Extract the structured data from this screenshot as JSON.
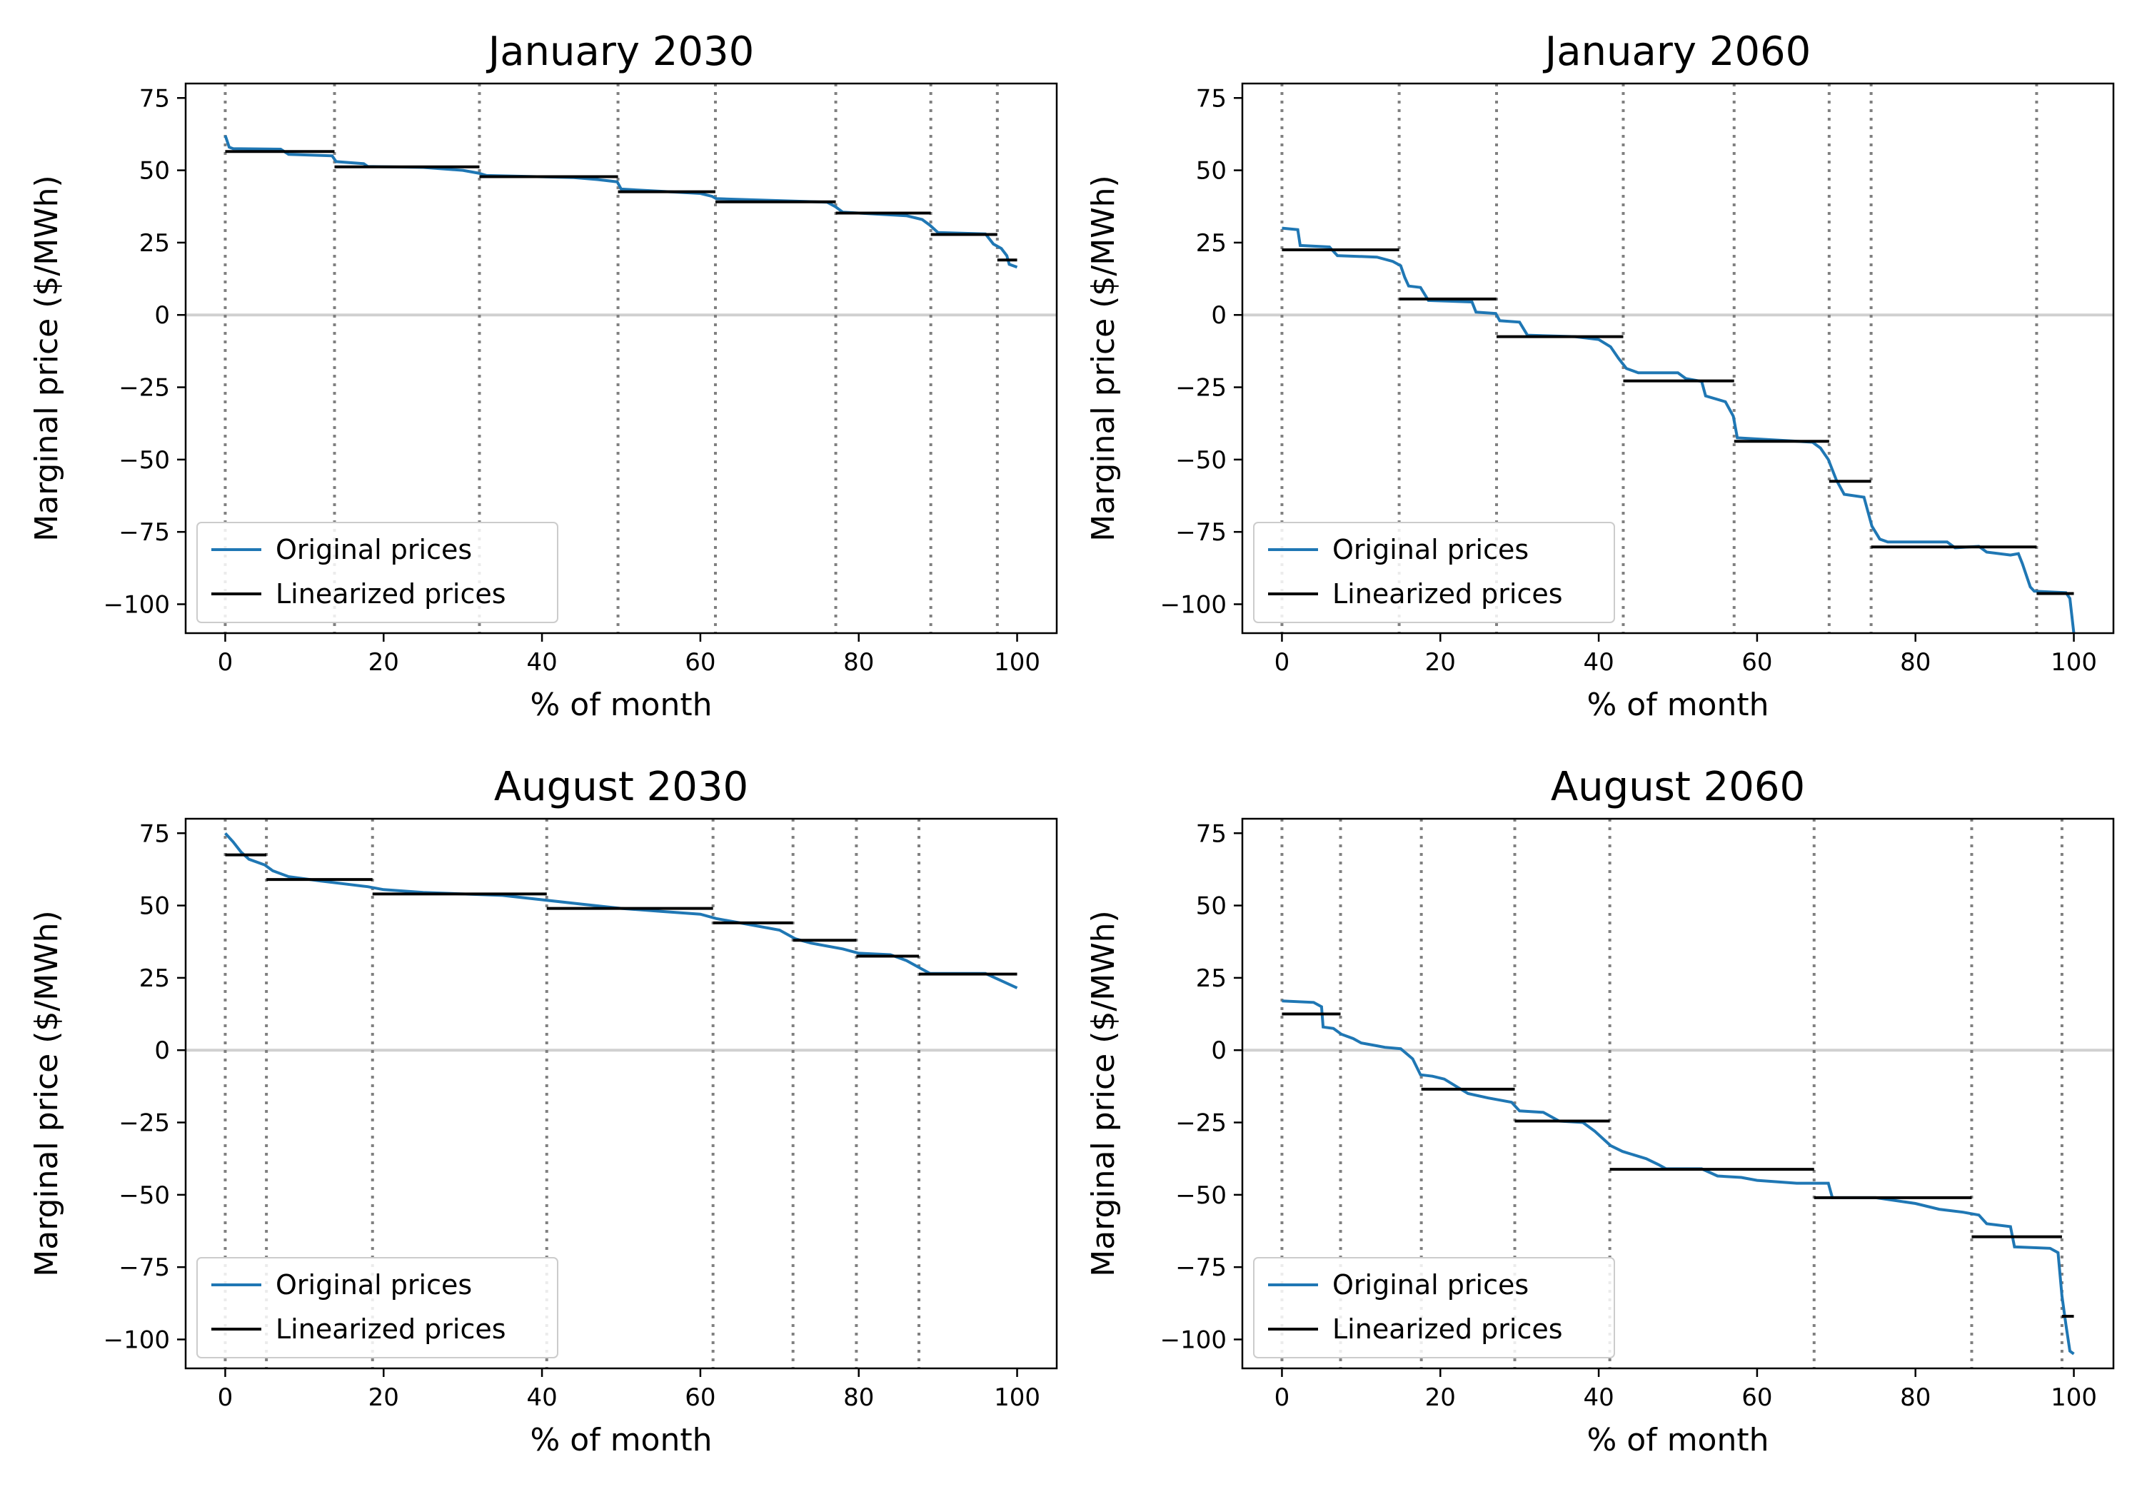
{
  "figure": {
    "panels": [
      {
        "title": "January 2030",
        "xlabel": "% of month",
        "ylabel": "Marginal price ($/MWh)"
      },
      {
        "title": "January 2060",
        "xlabel": "% of month",
        "ylabel": "Marginal price ($/MWh)"
      },
      {
        "title": "August 2030",
        "xlabel": "% of month",
        "ylabel": "Marginal price ($/MWh)"
      },
      {
        "title": "August 2060",
        "xlabel": "% of month",
        "ylabel": "Marginal price ($/MWh)"
      }
    ]
  },
  "chart_data": [
    {
      "type": "line",
      "title": "January 2030",
      "xlabel": "% of month",
      "ylabel": "Marginal price ($/MWh)",
      "xlim": [
        -5,
        105
      ],
      "ylim": [
        -110,
        80
      ],
      "xticks": [
        0,
        20,
        40,
        60,
        80,
        100
      ],
      "yticks": [
        75,
        50,
        25,
        0,
        -25,
        -50,
        -75,
        -100
      ],
      "grid": false,
      "legend": {
        "position": "lower-left",
        "entries": [
          "Original prices",
          "Linearized prices"
        ]
      },
      "colors": {
        "original": "#1f77b4",
        "linearized": "#000000",
        "divider": "#808080",
        "zero_line": "#d0d0d0"
      },
      "series": [
        {
          "name": "Original prices",
          "points": [
            [
              0,
              62
            ],
            [
              0.5,
              58
            ],
            [
              1,
              57.5
            ],
            [
              7,
              57.3
            ],
            [
              8,
              55.5
            ],
            [
              13.5,
              55
            ],
            [
              14,
              53
            ],
            [
              17.5,
              52.3
            ],
            [
              18,
              51.3
            ],
            [
              25,
              51
            ],
            [
              30,
              50
            ],
            [
              32,
              49
            ],
            [
              33,
              48.2
            ],
            [
              44,
              47.5
            ],
            [
              47,
              46.8
            ],
            [
              49.5,
              46
            ],
            [
              50,
              43.5
            ],
            [
              60,
              42
            ],
            [
              61.5,
              41
            ],
            [
              62,
              40.2
            ],
            [
              70,
              39.5
            ],
            [
              76,
              39
            ],
            [
              77,
              37.5
            ],
            [
              78,
              35.5
            ],
            [
              86,
              34.3
            ],
            [
              88,
              33
            ],
            [
              89,
              31
            ],
            [
              90,
              28.5
            ],
            [
              96,
              28
            ],
            [
              97,
              24.5
            ],
            [
              98,
              23
            ],
            [
              98.7,
              20.5
            ],
            [
              99,
              17.5
            ],
            [
              100,
              16.5
            ]
          ]
        },
        {
          "name": "Linearized prices",
          "segments": [
            [
              0,
              13.8,
              56.5
            ],
            [
              13.8,
              32.1,
              51.2
            ],
            [
              32.1,
              49.6,
              47.8
            ],
            [
              49.6,
              61.9,
              42.6
            ],
            [
              61.9,
              77.1,
              39.1
            ],
            [
              77.1,
              89.1,
              35.2
            ],
            [
              89.1,
              97.5,
              27.8
            ],
            [
              97.5,
              100,
              19
            ]
          ]
        }
      ],
      "dividers": [
        0,
        13.8,
        32.1,
        49.6,
        61.9,
        77.1,
        89.1,
        97.5
      ]
    },
    {
      "type": "line",
      "title": "January 2060",
      "xlabel": "% of month",
      "ylabel": "Marginal price ($/MWh)",
      "xlim": [
        -5,
        105
      ],
      "ylim": [
        -110,
        80
      ],
      "xticks": [
        0,
        20,
        40,
        60,
        80,
        100
      ],
      "yticks": [
        75,
        50,
        25,
        0,
        -25,
        -50,
        -75,
        -100
      ],
      "grid": false,
      "legend": {
        "position": "lower-left",
        "entries": [
          "Original prices",
          "Linearized prices"
        ]
      },
      "colors": {
        "original": "#1f77b4",
        "linearized": "#000000",
        "divider": "#808080",
        "zero_line": "#d0d0d0"
      },
      "series": [
        {
          "name": "Original prices",
          "points": [
            [
              0,
              30
            ],
            [
              2,
              29.5
            ],
            [
              2.3,
              24
            ],
            [
              6,
              23.5
            ],
            [
              7,
              20.5
            ],
            [
              12,
              20
            ],
            [
              14,
              18.5
            ],
            [
              15,
              17
            ],
            [
              15.5,
              13
            ],
            [
              16,
              10
            ],
            [
              17.5,
              9.5
            ],
            [
              18.5,
              5
            ],
            [
              24,
              4.5
            ],
            [
              24.5,
              1
            ],
            [
              27,
              0.5
            ],
            [
              27.5,
              -2
            ],
            [
              30,
              -2.5
            ],
            [
              31,
              -7
            ],
            [
              37,
              -7.5
            ],
            [
              40,
              -8.5
            ],
            [
              41.5,
              -11
            ],
            [
              42.5,
              -15
            ],
            [
              43.5,
              -18.5
            ],
            [
              45,
              -20
            ],
            [
              50,
              -20
            ],
            [
              51,
              -22
            ],
            [
              53,
              -23
            ],
            [
              53.5,
              -28
            ],
            [
              56,
              -30
            ],
            [
              57,
              -35
            ],
            [
              57.5,
              -42.5
            ],
            [
              64,
              -43.5
            ],
            [
              67,
              -44
            ],
            [
              68,
              -46
            ],
            [
              69,
              -50
            ],
            [
              70,
              -57
            ],
            [
              71,
              -62
            ],
            [
              73.5,
              -63
            ],
            [
              74.5,
              -73
            ],
            [
              75.5,
              -77.5
            ],
            [
              76.5,
              -78.5
            ],
            [
              84,
              -78.5
            ],
            [
              85,
              -80.5
            ],
            [
              88,
              -80
            ],
            [
              89,
              -82
            ],
            [
              92,
              -83
            ],
            [
              93,
              -82.5
            ],
            [
              93.5,
              -86
            ],
            [
              94.5,
              -94
            ],
            [
              95,
              -95.5
            ],
            [
              99,
              -96
            ],
            [
              99.5,
              -98
            ],
            [
              100,
              -110
            ]
          ]
        },
        {
          "name": "Linearized prices",
          "segments": [
            [
              0,
              14.8,
              22.5
            ],
            [
              14.8,
              27.1,
              5.5
            ],
            [
              27.1,
              43.1,
              -7.5
            ],
            [
              43.1,
              57.1,
              -22.8
            ],
            [
              57.1,
              69.1,
              -43.7
            ],
            [
              69.1,
              74.4,
              -57.5
            ],
            [
              74.4,
              95.3,
              -80.2
            ],
            [
              95.3,
              100,
              -96.3
            ]
          ]
        }
      ],
      "dividers": [
        0,
        14.8,
        27.1,
        43.1,
        57.1,
        69.1,
        74.4,
        95.3
      ]
    },
    {
      "type": "line",
      "title": "August 2030",
      "xlabel": "% of month",
      "ylabel": "Marginal price ($/MWh)",
      "xlim": [
        -5,
        105
      ],
      "ylim": [
        -110,
        80
      ],
      "xticks": [
        0,
        20,
        40,
        60,
        80,
        100
      ],
      "yticks": [
        75,
        50,
        25,
        0,
        -25,
        -50,
        -75,
        -100
      ],
      "grid": false,
      "legend": {
        "position": "lower-left",
        "entries": [
          "Original prices",
          "Linearized prices"
        ]
      },
      "colors": {
        "original": "#1f77b4",
        "linearized": "#000000",
        "divider": "#808080",
        "zero_line": "#d0d0d0"
      },
      "series": [
        {
          "name": "Original prices",
          "points": [
            [
              0,
              75
            ],
            [
              1,
              72
            ],
            [
              2,
              68.5
            ],
            [
              3,
              66
            ],
            [
              4,
              65
            ],
            [
              5,
              64
            ],
            [
              6,
              62
            ],
            [
              8,
              60
            ],
            [
              12,
              58.5
            ],
            [
              15,
              57.5
            ],
            [
              18,
              56.5
            ],
            [
              20,
              55.5
            ],
            [
              25,
              54.5
            ],
            [
              30,
              54
            ],
            [
              35,
              53.5
            ],
            [
              40,
              52
            ],
            [
              45,
              50.5
            ],
            [
              50,
              49
            ],
            [
              55,
              48
            ],
            [
              60,
              47
            ],
            [
              62,
              45.5
            ],
            [
              65,
              44
            ],
            [
              70,
              41.5
            ],
            [
              72,
              38.5
            ],
            [
              74,
              37
            ],
            [
              78,
              35
            ],
            [
              80,
              33.5
            ],
            [
              84,
              33
            ],
            [
              86,
              31
            ],
            [
              88,
              28
            ],
            [
              89,
              26.5
            ],
            [
              96,
              26.5
            ],
            [
              98,
              24
            ],
            [
              100,
              21.5
            ]
          ]
        },
        {
          "name": "Linearized prices",
          "segments": [
            [
              0,
              5.2,
              67.5
            ],
            [
              5.2,
              18.6,
              59
            ],
            [
              18.6,
              40.6,
              54
            ],
            [
              40.6,
              61.6,
              49
            ],
            [
              61.6,
              71.7,
              44
            ],
            [
              71.7,
              79.7,
              38
            ],
            [
              79.7,
              87.6,
              32.5
            ],
            [
              87.6,
              100,
              26.3
            ]
          ]
        }
      ],
      "dividers": [
        0,
        5.2,
        18.6,
        40.6,
        61.6,
        71.7,
        79.7,
        87.6
      ]
    },
    {
      "type": "line",
      "title": "August 2060",
      "xlabel": "% of month",
      "ylabel": "Marginal price ($/MWh)",
      "xlim": [
        -5,
        105
      ],
      "ylim": [
        -110,
        80
      ],
      "xticks": [
        0,
        20,
        40,
        60,
        80,
        100
      ],
      "yticks": [
        75,
        50,
        25,
        0,
        -25,
        -50,
        -75,
        -100
      ],
      "grid": false,
      "legend": {
        "position": "lower-left",
        "entries": [
          "Original prices",
          "Linearized prices"
        ]
      },
      "colors": {
        "original": "#1f77b4",
        "linearized": "#000000",
        "divider": "#808080",
        "zero_line": "#d0d0d0"
      },
      "series": [
        {
          "name": "Original prices",
          "points": [
            [
              0,
              17
            ],
            [
              4,
              16.5
            ],
            [
              5,
              15
            ],
            [
              5.2,
              8
            ],
            [
              6.5,
              7.5
            ],
            [
              7.5,
              5.5
            ],
            [
              9,
              4
            ],
            [
              10,
              2.5
            ],
            [
              12,
              1.5
            ],
            [
              13,
              1
            ],
            [
              15,
              0.5
            ],
            [
              16.5,
              -3
            ],
            [
              17.5,
              -8.5
            ],
            [
              19,
              -9
            ],
            [
              20.5,
              -10
            ],
            [
              22,
              -12.5
            ],
            [
              23.5,
              -15
            ],
            [
              26,
              -16.5
            ],
            [
              29,
              -18
            ],
            [
              30,
              -21
            ],
            [
              33,
              -21.5
            ],
            [
              35,
              -24.5
            ],
            [
              38,
              -25
            ],
            [
              39.5,
              -28
            ],
            [
              41.5,
              -33
            ],
            [
              43,
              -35
            ],
            [
              46,
              -37.5
            ],
            [
              47.5,
              -39.5
            ],
            [
              48.5,
              -41
            ],
            [
              53,
              -41
            ],
            [
              55,
              -43.5
            ],
            [
              58,
              -44
            ],
            [
              60,
              -45
            ],
            [
              65,
              -46
            ],
            [
              69,
              -46
            ],
            [
              69.5,
              -51
            ],
            [
              75,
              -51
            ],
            [
              80,
              -53
            ],
            [
              83,
              -55
            ],
            [
              86,
              -56
            ],
            [
              88,
              -57
            ],
            [
              89,
              -60
            ],
            [
              92,
              -61
            ],
            [
              92.5,
              -68
            ],
            [
              97,
              -68.5
            ],
            [
              98,
              -70
            ],
            [
              98.5,
              -85
            ],
            [
              99,
              -95
            ],
            [
              99.5,
              -104
            ],
            [
              100,
              -105
            ]
          ]
        },
        {
          "name": "Linearized prices",
          "segments": [
            [
              0,
              7.4,
              12.5
            ],
            [
              7.4,
              17.6,
              null
            ],
            [
              17.6,
              29.4,
              -13.5
            ],
            [
              29.4,
              41.4,
              -24.5
            ],
            [
              41.4,
              67.2,
              -41.2
            ],
            [
              67.2,
              87.1,
              -51
            ],
            [
              87.1,
              98.5,
              -64.5
            ],
            [
              98.5,
              100,
              -92
            ]
          ]
        }
      ],
      "dividers": [
        0,
        7.4,
        17.6,
        29.4,
        41.4,
        67.2,
        87.1,
        98.5
      ]
    }
  ]
}
